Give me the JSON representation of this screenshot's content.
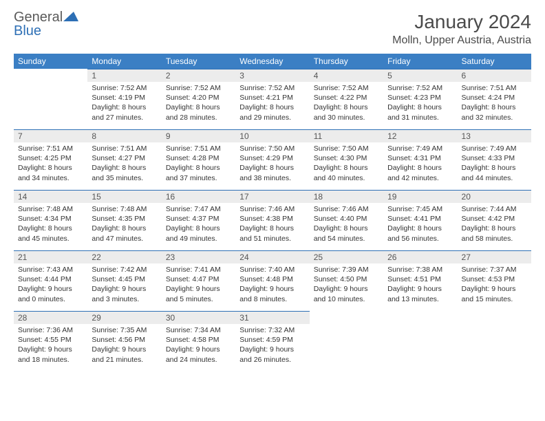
{
  "brand": {
    "part1": "General",
    "part2": "Blue"
  },
  "title": "January 2024",
  "location": "Molln, Upper Austria, Austria",
  "colors": {
    "header_bg": "#3b7fc4",
    "header_text": "#ffffff",
    "daynum_bg": "#ececec",
    "daynum_border": "#2d6fb5",
    "body_text": "#333333",
    "title_text": "#4a4a4a"
  },
  "days_of_week": [
    "Sunday",
    "Monday",
    "Tuesday",
    "Wednesday",
    "Thursday",
    "Friday",
    "Saturday"
  ],
  "weeks": [
    [
      null,
      {
        "n": "1",
        "sr": "Sunrise: 7:52 AM",
        "ss": "Sunset: 4:19 PM",
        "d1": "Daylight: 8 hours",
        "d2": "and 27 minutes."
      },
      {
        "n": "2",
        "sr": "Sunrise: 7:52 AM",
        "ss": "Sunset: 4:20 PM",
        "d1": "Daylight: 8 hours",
        "d2": "and 28 minutes."
      },
      {
        "n": "3",
        "sr": "Sunrise: 7:52 AM",
        "ss": "Sunset: 4:21 PM",
        "d1": "Daylight: 8 hours",
        "d2": "and 29 minutes."
      },
      {
        "n": "4",
        "sr": "Sunrise: 7:52 AM",
        "ss": "Sunset: 4:22 PM",
        "d1": "Daylight: 8 hours",
        "d2": "and 30 minutes."
      },
      {
        "n": "5",
        "sr": "Sunrise: 7:52 AM",
        "ss": "Sunset: 4:23 PM",
        "d1": "Daylight: 8 hours",
        "d2": "and 31 minutes."
      },
      {
        "n": "6",
        "sr": "Sunrise: 7:51 AM",
        "ss": "Sunset: 4:24 PM",
        "d1": "Daylight: 8 hours",
        "d2": "and 32 minutes."
      }
    ],
    [
      {
        "n": "7",
        "sr": "Sunrise: 7:51 AM",
        "ss": "Sunset: 4:25 PM",
        "d1": "Daylight: 8 hours",
        "d2": "and 34 minutes."
      },
      {
        "n": "8",
        "sr": "Sunrise: 7:51 AM",
        "ss": "Sunset: 4:27 PM",
        "d1": "Daylight: 8 hours",
        "d2": "and 35 minutes."
      },
      {
        "n": "9",
        "sr": "Sunrise: 7:51 AM",
        "ss": "Sunset: 4:28 PM",
        "d1": "Daylight: 8 hours",
        "d2": "and 37 minutes."
      },
      {
        "n": "10",
        "sr": "Sunrise: 7:50 AM",
        "ss": "Sunset: 4:29 PM",
        "d1": "Daylight: 8 hours",
        "d2": "and 38 minutes."
      },
      {
        "n": "11",
        "sr": "Sunrise: 7:50 AM",
        "ss": "Sunset: 4:30 PM",
        "d1": "Daylight: 8 hours",
        "d2": "and 40 minutes."
      },
      {
        "n": "12",
        "sr": "Sunrise: 7:49 AM",
        "ss": "Sunset: 4:31 PM",
        "d1": "Daylight: 8 hours",
        "d2": "and 42 minutes."
      },
      {
        "n": "13",
        "sr": "Sunrise: 7:49 AM",
        "ss": "Sunset: 4:33 PM",
        "d1": "Daylight: 8 hours",
        "d2": "and 44 minutes."
      }
    ],
    [
      {
        "n": "14",
        "sr": "Sunrise: 7:48 AM",
        "ss": "Sunset: 4:34 PM",
        "d1": "Daylight: 8 hours",
        "d2": "and 45 minutes."
      },
      {
        "n": "15",
        "sr": "Sunrise: 7:48 AM",
        "ss": "Sunset: 4:35 PM",
        "d1": "Daylight: 8 hours",
        "d2": "and 47 minutes."
      },
      {
        "n": "16",
        "sr": "Sunrise: 7:47 AM",
        "ss": "Sunset: 4:37 PM",
        "d1": "Daylight: 8 hours",
        "d2": "and 49 minutes."
      },
      {
        "n": "17",
        "sr": "Sunrise: 7:46 AM",
        "ss": "Sunset: 4:38 PM",
        "d1": "Daylight: 8 hours",
        "d2": "and 51 minutes."
      },
      {
        "n": "18",
        "sr": "Sunrise: 7:46 AM",
        "ss": "Sunset: 4:40 PM",
        "d1": "Daylight: 8 hours",
        "d2": "and 54 minutes."
      },
      {
        "n": "19",
        "sr": "Sunrise: 7:45 AM",
        "ss": "Sunset: 4:41 PM",
        "d1": "Daylight: 8 hours",
        "d2": "and 56 minutes."
      },
      {
        "n": "20",
        "sr": "Sunrise: 7:44 AM",
        "ss": "Sunset: 4:42 PM",
        "d1": "Daylight: 8 hours",
        "d2": "and 58 minutes."
      }
    ],
    [
      {
        "n": "21",
        "sr": "Sunrise: 7:43 AM",
        "ss": "Sunset: 4:44 PM",
        "d1": "Daylight: 9 hours",
        "d2": "and 0 minutes."
      },
      {
        "n": "22",
        "sr": "Sunrise: 7:42 AM",
        "ss": "Sunset: 4:45 PM",
        "d1": "Daylight: 9 hours",
        "d2": "and 3 minutes."
      },
      {
        "n": "23",
        "sr": "Sunrise: 7:41 AM",
        "ss": "Sunset: 4:47 PM",
        "d1": "Daylight: 9 hours",
        "d2": "and 5 minutes."
      },
      {
        "n": "24",
        "sr": "Sunrise: 7:40 AM",
        "ss": "Sunset: 4:48 PM",
        "d1": "Daylight: 9 hours",
        "d2": "and 8 minutes."
      },
      {
        "n": "25",
        "sr": "Sunrise: 7:39 AM",
        "ss": "Sunset: 4:50 PM",
        "d1": "Daylight: 9 hours",
        "d2": "and 10 minutes."
      },
      {
        "n": "26",
        "sr": "Sunrise: 7:38 AM",
        "ss": "Sunset: 4:51 PM",
        "d1": "Daylight: 9 hours",
        "d2": "and 13 minutes."
      },
      {
        "n": "27",
        "sr": "Sunrise: 7:37 AM",
        "ss": "Sunset: 4:53 PM",
        "d1": "Daylight: 9 hours",
        "d2": "and 15 minutes."
      }
    ],
    [
      {
        "n": "28",
        "sr": "Sunrise: 7:36 AM",
        "ss": "Sunset: 4:55 PM",
        "d1": "Daylight: 9 hours",
        "d2": "and 18 minutes."
      },
      {
        "n": "29",
        "sr": "Sunrise: 7:35 AM",
        "ss": "Sunset: 4:56 PM",
        "d1": "Daylight: 9 hours",
        "d2": "and 21 minutes."
      },
      {
        "n": "30",
        "sr": "Sunrise: 7:34 AM",
        "ss": "Sunset: 4:58 PM",
        "d1": "Daylight: 9 hours",
        "d2": "and 24 minutes."
      },
      {
        "n": "31",
        "sr": "Sunrise: 7:32 AM",
        "ss": "Sunset: 4:59 PM",
        "d1": "Daylight: 9 hours",
        "d2": "and 26 minutes."
      },
      null,
      null,
      null
    ]
  ]
}
